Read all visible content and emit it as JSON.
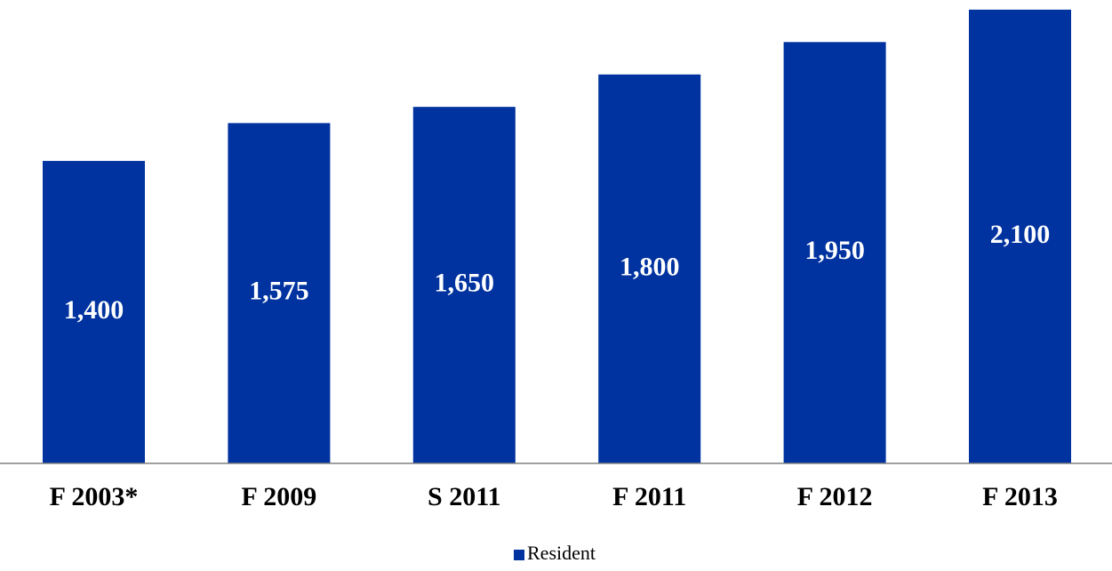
{
  "chart_data": {
    "type": "bar",
    "categories": [
      "F 2003*",
      "F 2009",
      "S 2011",
      "F 2011",
      "F 2012",
      "F 2013"
    ],
    "series": [
      {
        "name": "Resident",
        "values": [
          1400,
          1575,
          1650,
          1800,
          1950,
          2100
        ],
        "labels": [
          "1,400",
          "1,575",
          "1,650",
          "1,800",
          "1,950",
          "2,100"
        ],
        "color": "#0033A0"
      }
    ],
    "title": "",
    "xlabel": "",
    "ylabel": "",
    "ylim": [
      0,
      2120
    ],
    "grid": false,
    "y_axis_visible": false,
    "legend_position": "bottom",
    "axis_color": "#808080"
  }
}
